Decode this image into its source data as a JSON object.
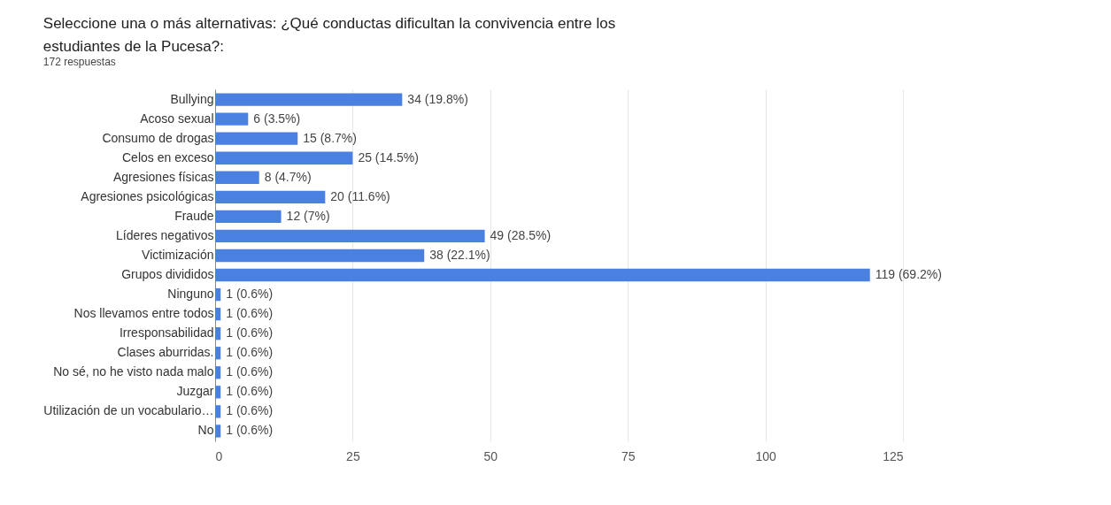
{
  "chart_data": {
    "type": "bar",
    "orientation": "horizontal",
    "title": "Seleccione una o más alternativas: ¿Qué conductas dificultan la convivencia entre los estudiantes de la Pucesa?:",
    "subtitle": "172 respuestas",
    "categories": [
      "Bullying",
      "Acoso sexual",
      "Consumo de drogas",
      "Celos en exceso",
      "Agresiones físicas",
      "Agresiones psicológicas",
      "Fraude",
      "Líderes negativos",
      "Victimización",
      "Grupos divididos",
      "Ninguno",
      "Nos llevamos entre todos",
      "Irresponsabilidad",
      "Clases aburridas.",
      "No sé, no he visto nada malo",
      "Juzgar",
      "Utilización de un vocabulario…",
      "No"
    ],
    "values": [
      34,
      6,
      15,
      25,
      8,
      20,
      12,
      49,
      38,
      119,
      1,
      1,
      1,
      1,
      1,
      1,
      1,
      1
    ],
    "value_labels": [
      "34 (19.8%)",
      "6 (3.5%)",
      "15 (8.7%)",
      "25 (14.5%)",
      "8 (4.7%)",
      "20 (11.6%)",
      "12 (7%)",
      "49 (28.5%)",
      "38 (22.1%)",
      "119 (69.2%)",
      "1 (0.6%)",
      "1 (0.6%)",
      "1 (0.6%)",
      "1 (0.6%)",
      "1 (0.6%)",
      "1 (0.6%)",
      "1 (0.6%)",
      "1 (0.6%)"
    ],
    "color": "#4a80e0",
    "xlim": [
      0,
      125
    ],
    "xticks": [
      0,
      25,
      50,
      75,
      100,
      125
    ],
    "grid": "x"
  }
}
